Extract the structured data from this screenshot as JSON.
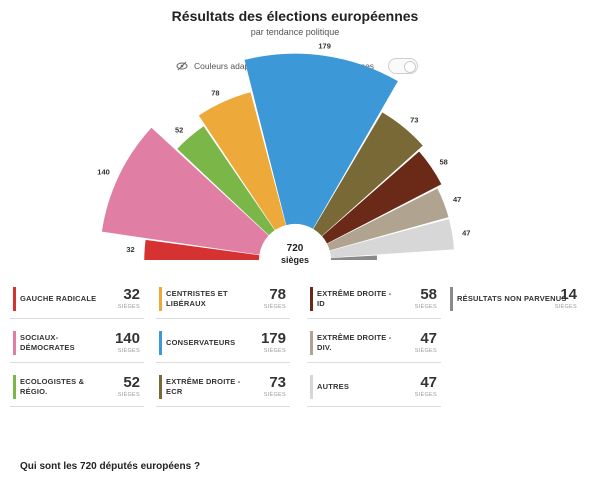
{
  "header": {
    "title": "Résultats des élections européennes",
    "subtitle": "par tendance politique"
  },
  "colorblind": {
    "label": "Couleurs adaptées aux personnes daltoniennes"
  },
  "center": {
    "number": "720",
    "label": "sièges"
  },
  "seats_unit": "SIÈGES",
  "question": "Qui sont les 720 députés européens ?",
  "chart_data": {
    "type": "parliament-semicircle",
    "title": "Résultats des élections européennes",
    "subtitle": "par tendance politique",
    "total": 720,
    "groups": [
      {
        "name": "GAUCHE RADICALE",
        "seats": 32,
        "color": "#d63232"
      },
      {
        "name": "SOCIAUX-DÉMOCRATES",
        "seats": 140,
        "color": "#e07fa3"
      },
      {
        "name": "ECOLOGISTES & RÉGIO.",
        "seats": 52,
        "color": "#7ab648"
      },
      {
        "name": "CENTRISTES ET LIBÉRAUX",
        "seats": 78,
        "color": "#eda93a"
      },
      {
        "name": "CONSERVATEURS",
        "seats": 179,
        "color": "#3d98d8"
      },
      {
        "name": "EXTRÊME DROITE - ECR",
        "seats": 73,
        "color": "#796936"
      },
      {
        "name": "EXTRÊME DROITE - ID",
        "seats": 58,
        "color": "#6b2a17"
      },
      {
        "name": "EXTRÊME DROITE - DIV.",
        "seats": 47,
        "color": "#b0a390"
      },
      {
        "name": "AUTRES",
        "seats": 47,
        "color": "#d7d7d7"
      },
      {
        "name": "RÉSULTATS NON PARVENUS",
        "seats": 14,
        "color": "#8a8a8a"
      }
    ]
  }
}
